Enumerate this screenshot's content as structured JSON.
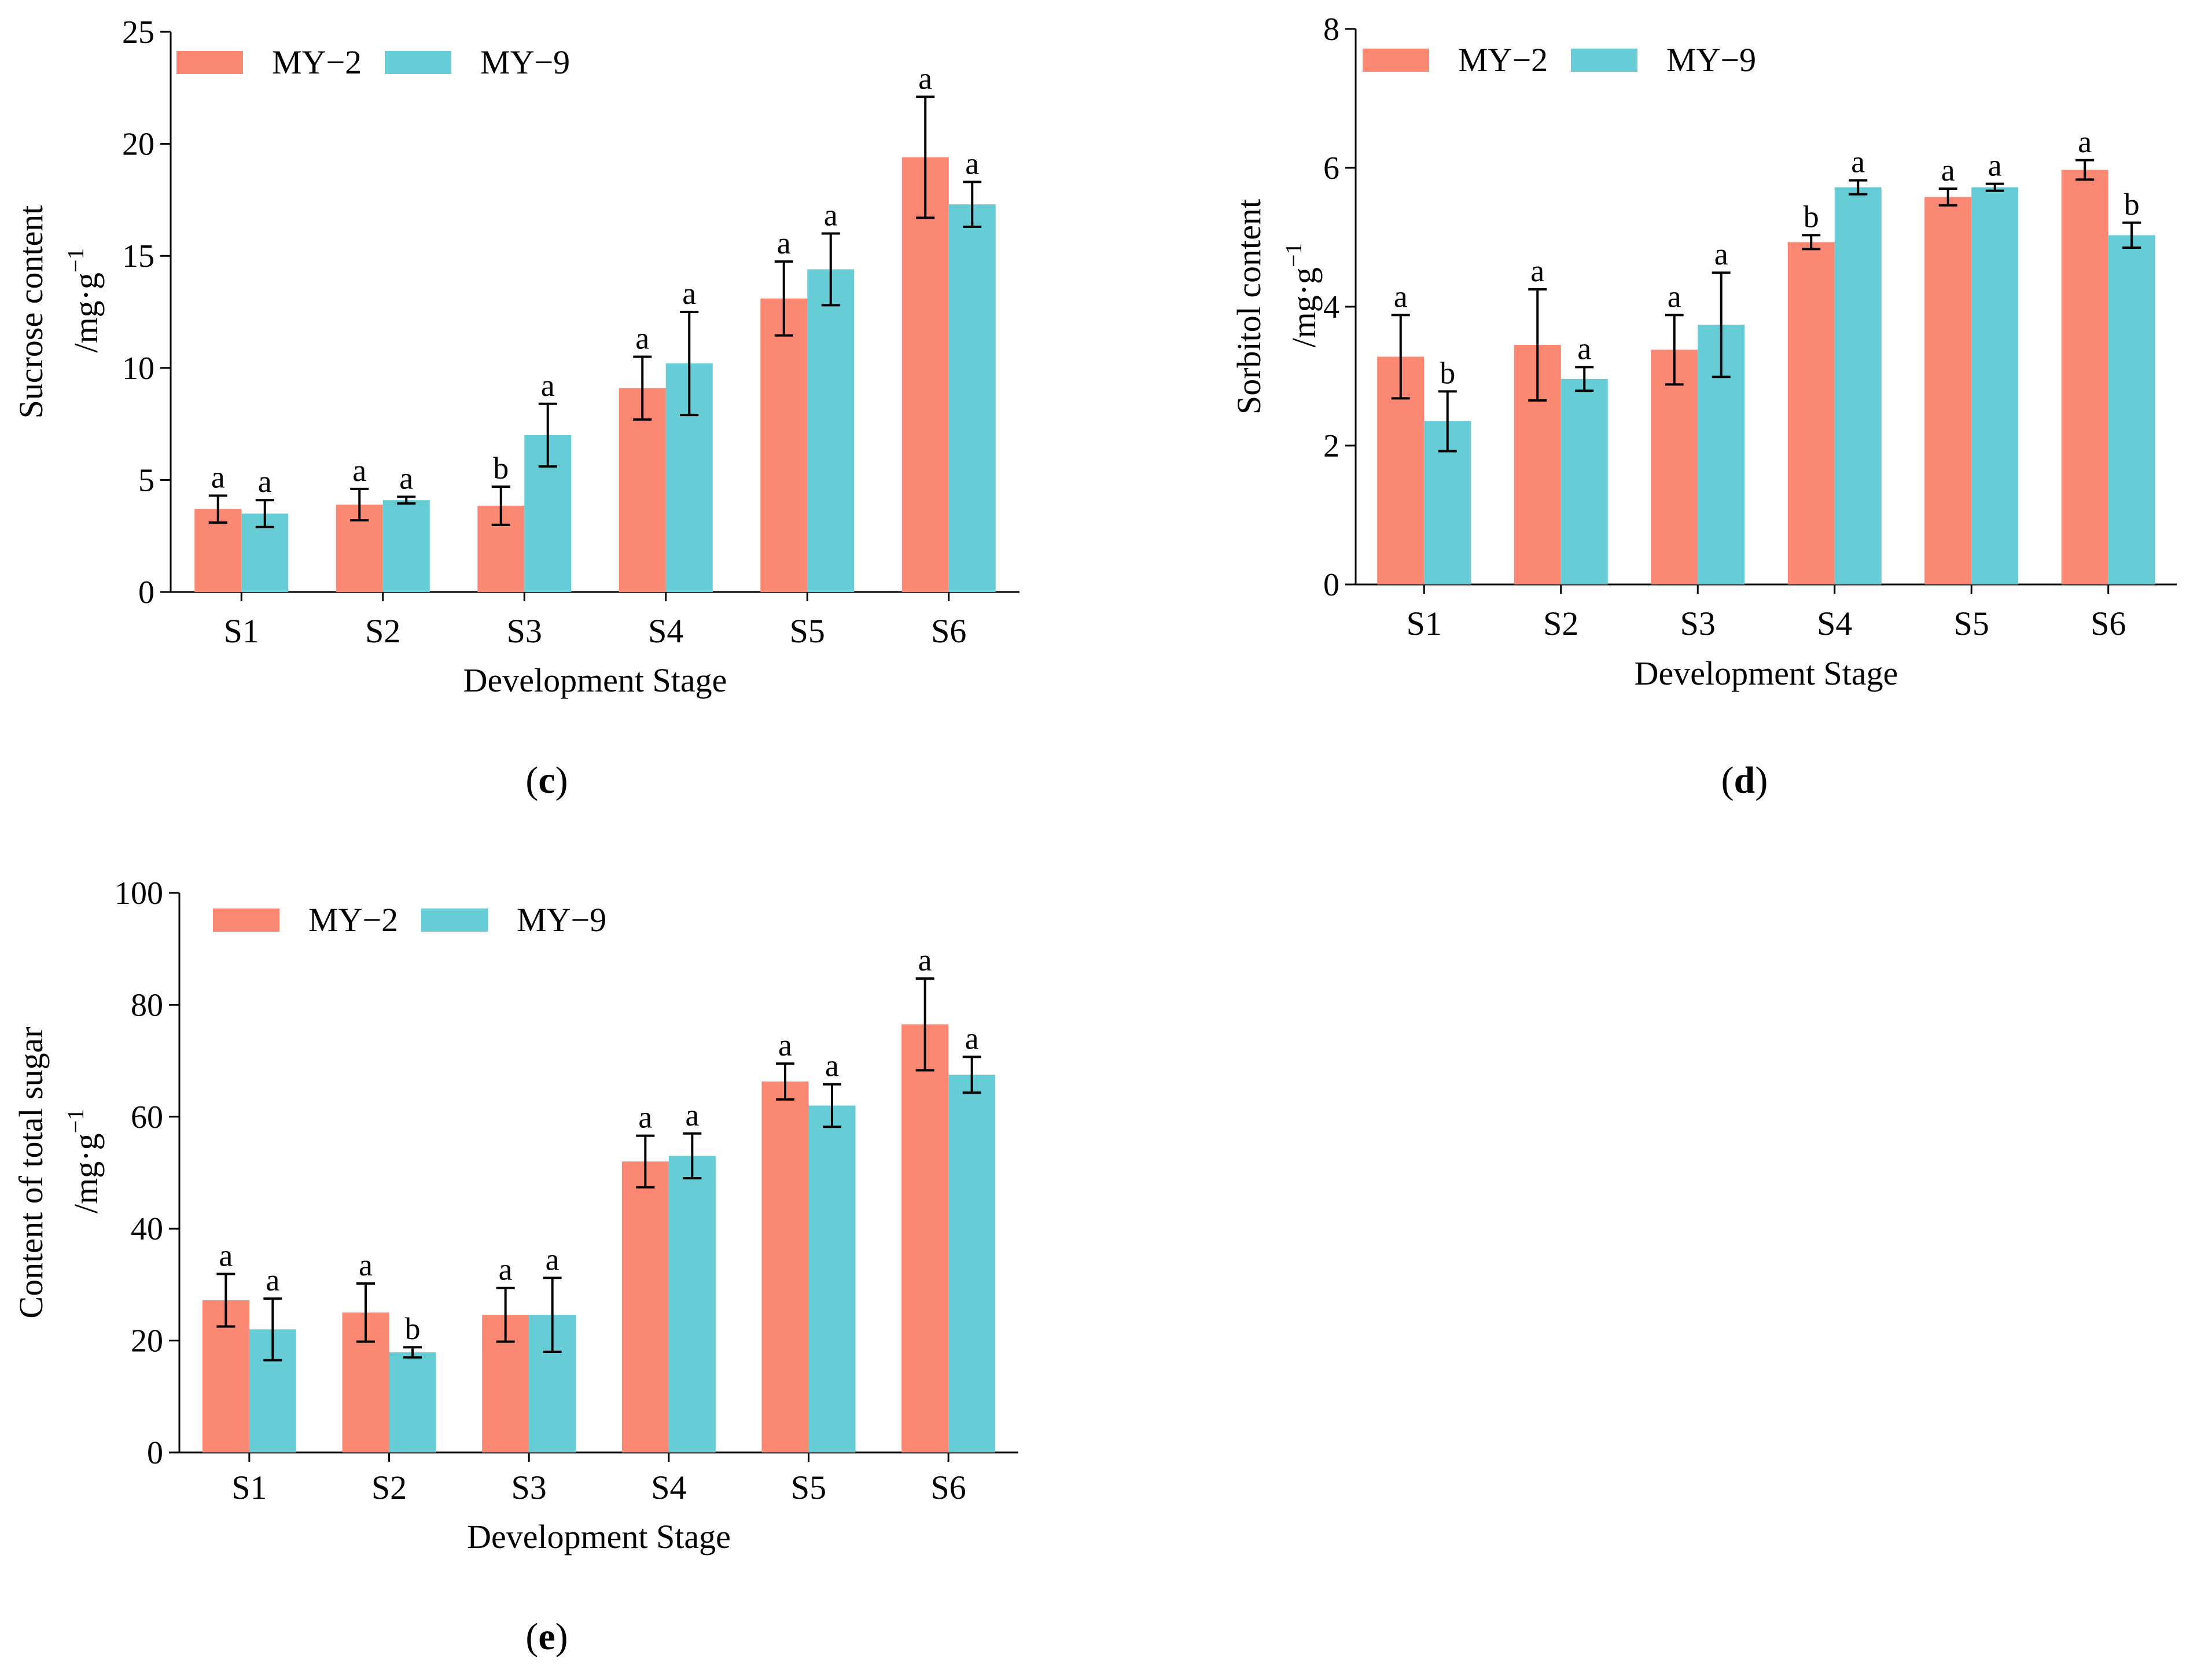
{
  "colors": {
    "MY-2": "#FA8872",
    "MY-9": "#66CDD6",
    "axis": "#000000"
  },
  "chart_data": [
    {
      "id": "c",
      "type": "bar",
      "panel_label": {
        "open": "(",
        "letter": "c",
        "close": ")"
      },
      "ylabel": "Sucrose content",
      "yunit": {
        "base": "/mg·g",
        "exp": "−1"
      },
      "xlabel": "Development Stage",
      "ylim": [
        0,
        25
      ],
      "yticks": [
        0,
        5,
        10,
        15,
        20,
        25
      ],
      "categories": [
        "S1",
        "S2",
        "S3",
        "S4",
        "S5",
        "S6"
      ],
      "legend": [
        "MY−2",
        "MY−9"
      ],
      "series": [
        {
          "name": "MY−2",
          "color_key": "MY-2",
          "values": [
            3.7,
            3.9,
            3.85,
            9.1,
            13.1,
            19.4
          ],
          "errors": [
            0.6,
            0.7,
            0.85,
            1.4,
            1.65,
            2.7
          ],
          "labels": [
            "a",
            "a",
            "b",
            "a",
            "a",
            "a"
          ]
        },
        {
          "name": "MY−9",
          "color_key": "MY-9",
          "values": [
            3.5,
            4.1,
            7.0,
            10.2,
            14.4,
            17.3
          ],
          "errors": [
            0.6,
            0.15,
            1.4,
            2.3,
            1.6,
            1.0
          ],
          "labels": [
            "a",
            "a",
            "a",
            "a",
            "a",
            "a"
          ]
        }
      ]
    },
    {
      "id": "d",
      "type": "bar",
      "panel_label": {
        "open": "(",
        "letter": "d",
        "close": ")"
      },
      "ylabel": "Sorbitol content",
      "yunit": {
        "base": "/mg·g",
        "exp": "−1"
      },
      "xlabel": "Development Stage",
      "ylim": [
        0,
        8
      ],
      "yticks": [
        0,
        2,
        4,
        6,
        8
      ],
      "categories": [
        "S1",
        "S2",
        "S3",
        "S4",
        "S5",
        "S6"
      ],
      "legend": [
        "MY−2",
        "MY−9"
      ],
      "series": [
        {
          "name": "MY−2",
          "color_key": "MY-2",
          "values": [
            3.28,
            3.45,
            3.38,
            4.93,
            5.58,
            5.97
          ],
          "errors": [
            0.6,
            0.8,
            0.5,
            0.1,
            0.12,
            0.14
          ],
          "labels": [
            "a",
            "a",
            "a",
            "b",
            "a",
            "a"
          ]
        },
        {
          "name": "MY−9",
          "color_key": "MY-9",
          "values": [
            2.35,
            2.96,
            3.74,
            5.72,
            5.72,
            5.03
          ],
          "errors": [
            0.43,
            0.17,
            0.75,
            0.1,
            0.05,
            0.18
          ],
          "labels": [
            "b",
            "a",
            "a",
            "a",
            "a",
            "b"
          ]
        }
      ]
    },
    {
      "id": "e",
      "type": "bar",
      "panel_label": {
        "open": "(",
        "letter": "e",
        "close": ")"
      },
      "ylabel": "Content of total sugar",
      "yunit": {
        "base": "/mg·g",
        "exp": "−1"
      },
      "xlabel": "Development Stage",
      "ylim": [
        0,
        100
      ],
      "yticks": [
        0,
        20,
        40,
        60,
        80,
        100
      ],
      "categories": [
        "S1",
        "S2",
        "S3",
        "S4",
        "S5",
        "S6"
      ],
      "legend": [
        "MY−2",
        "MY−9"
      ],
      "series": [
        {
          "name": "MY−2",
          "color_key": "MY-2",
          "values": [
            27.2,
            25.0,
            24.6,
            52.0,
            66.3,
            76.5
          ],
          "errors": [
            4.7,
            5.2,
            4.8,
            4.6,
            3.2,
            8.2
          ],
          "labels": [
            "a",
            "a",
            "a",
            "a",
            "a",
            "a"
          ]
        },
        {
          "name": "MY−9",
          "color_key": "MY-9",
          "values": [
            22.0,
            17.9,
            24.6,
            53.0,
            62.0,
            67.5
          ],
          "errors": [
            5.5,
            0.9,
            6.6,
            4.0,
            3.8,
            3.2
          ],
          "labels": [
            "a",
            "b",
            "a",
            "a",
            "a",
            "a"
          ]
        }
      ]
    }
  ]
}
